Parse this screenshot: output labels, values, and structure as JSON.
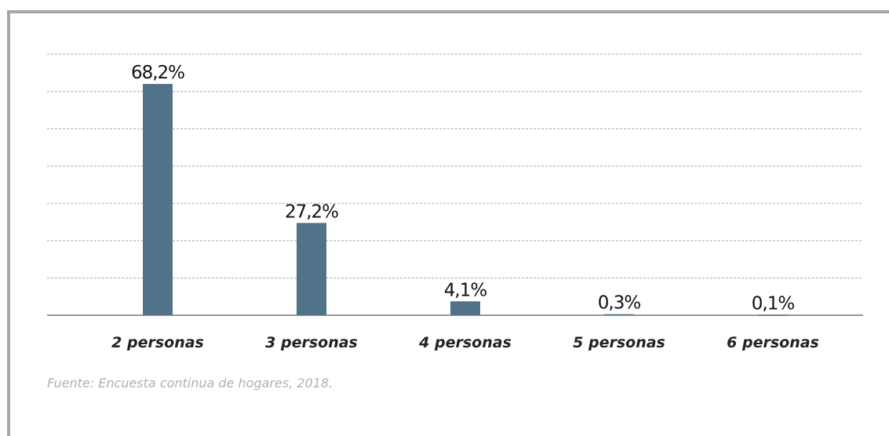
{
  "chart_data": {
    "type": "bar",
    "categories": [
      "2 personas",
      "3 personas",
      "4 personas",
      "5 personas",
      "6 personas"
    ],
    "values": [
      68.2,
      27.2,
      4.1,
      0.3,
      0.1
    ],
    "value_labels": [
      "68,2%",
      "27,2%",
      "4,1%",
      "0,3%",
      "0,1%"
    ],
    "color": "#50738a",
    "ylim": [
      0,
      77
    ],
    "yticks": [
      0,
      11,
      22,
      33,
      44,
      55,
      66,
      77
    ],
    "grid": true,
    "source": "Fuente: Encuesta continua de hogares, 2018."
  }
}
